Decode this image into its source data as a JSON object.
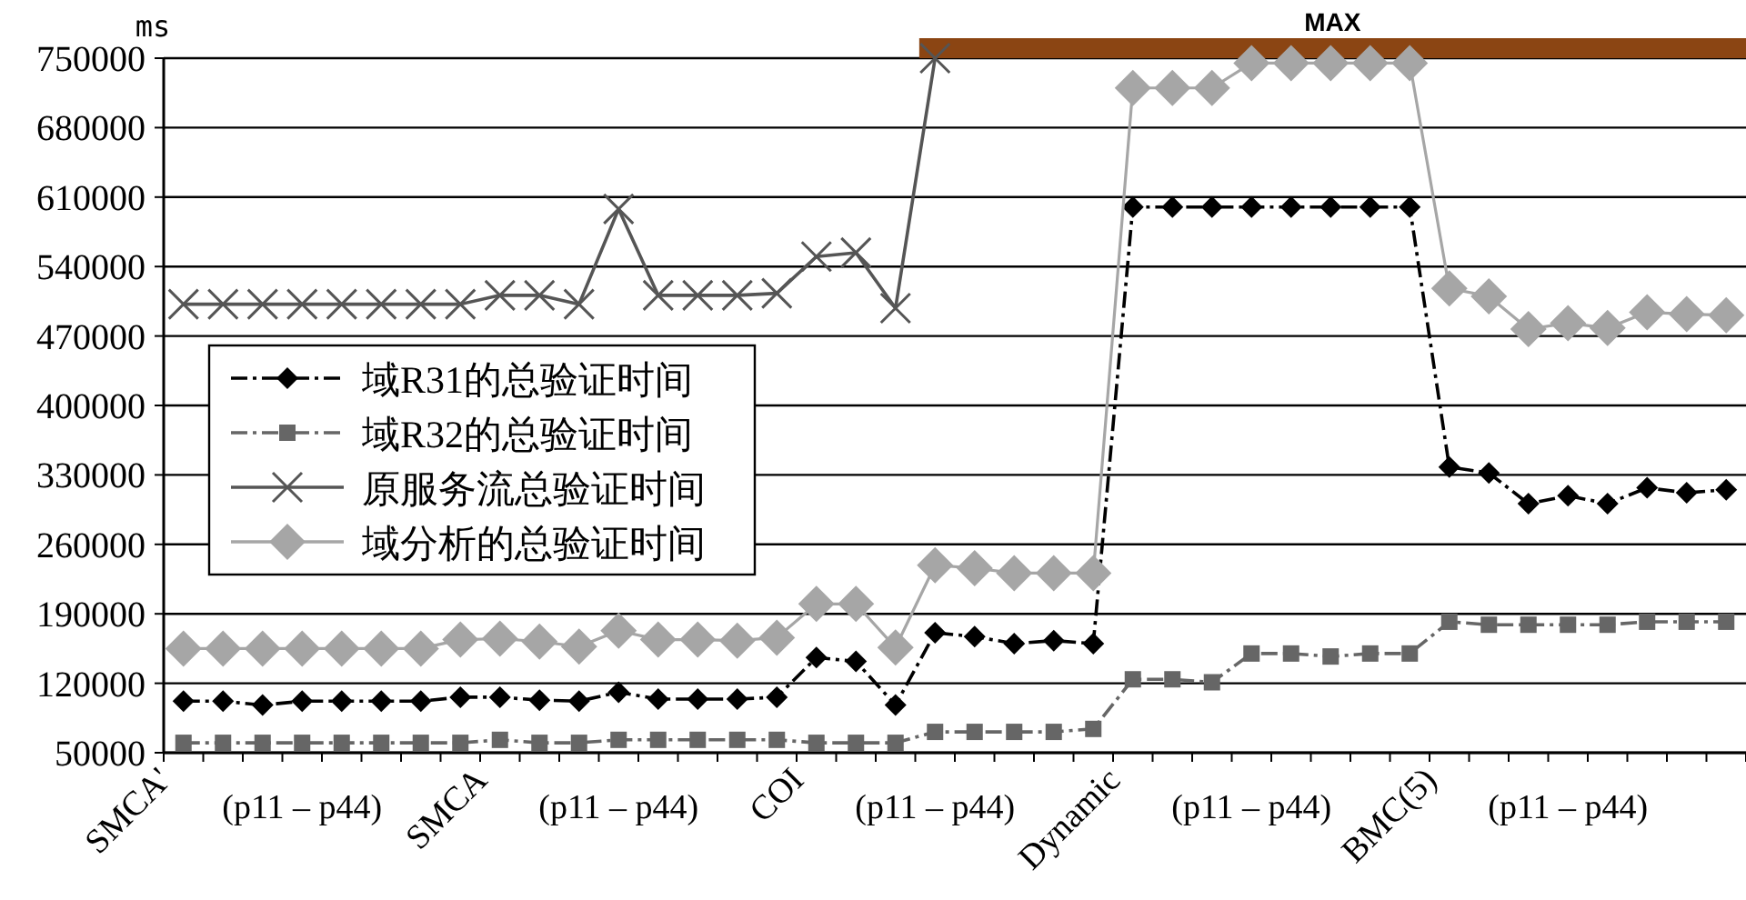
{
  "chart_data": {
    "type": "line",
    "ylabel": "ms",
    "categories": [
      "SMCA'",
      null,
      null,
      "(p11 – p44)",
      null,
      null,
      null,
      null,
      "SMCA",
      null,
      null,
      "(p11 – p44)",
      null,
      null,
      null,
      null,
      "COI",
      null,
      null,
      "(p11 – p44)",
      null,
      null,
      null,
      null,
      "Dynamic",
      null,
      null,
      "(p11 – p44)",
      null,
      null,
      null,
      null,
      "BMC(5)",
      null,
      null,
      "(p11 – p44)",
      null,
      null,
      null,
      null
    ],
    "series": [
      {
        "name": "域R31的总验证时间",
        "color": "#000000",
        "marker": "diamond",
        "line_style": "dashed",
        "values": [
          102000,
          102000,
          98000,
          102000,
          102000,
          102000,
          102000,
          106000,
          106000,
          103000,
          102000,
          111000,
          104000,
          104000,
          104000,
          106000,
          146000,
          142000,
          98000,
          171000,
          167000,
          160000,
          163000,
          160000,
          600000,
          600000,
          600000,
          600000,
          600000,
          600000,
          600000,
          600000,
          338000,
          332000,
          301000,
          309000,
          301000,
          317000,
          312000,
          315000
        ]
      },
      {
        "name": "域R32的总验证时间",
        "color": "#666666",
        "marker": "square",
        "line_style": "dashed",
        "values": [
          60000,
          60000,
          60000,
          60000,
          60000,
          60000,
          60000,
          60000,
          63000,
          60000,
          60000,
          63000,
          63000,
          63000,
          63000,
          63000,
          60000,
          60000,
          60000,
          71000,
          71000,
          71000,
          71000,
          74000,
          124000,
          124000,
          121000,
          150000,
          150000,
          147000,
          150000,
          150000,
          182000,
          179000,
          179000,
          179000,
          179000,
          182000,
          182000,
          182000
        ]
      },
      {
        "name": "原服务流总验证时间",
        "color": "#555555",
        "marker": "cross",
        "line_style": "solid",
        "values": [
          502000,
          502000,
          502000,
          502000,
          502000,
          502000,
          502000,
          502000,
          511000,
          511000,
          502000,
          598000,
          511000,
          511000,
          511000,
          513000,
          550000,
          554000,
          498000,
          750000,
          null,
          null,
          null,
          null,
          null,
          null,
          null,
          null,
          null,
          null,
          null,
          null,
          null,
          null,
          null,
          null,
          null,
          null,
          null,
          null
        ]
      },
      {
        "name": "域分析的总验证时间",
        "color": "#a6a6a6",
        "marker": "diamond",
        "line_style": "solid",
        "values": [
          155000,
          155000,
          155000,
          155000,
          155000,
          155000,
          155000,
          164000,
          165000,
          162000,
          157000,
          173000,
          164000,
          164000,
          163000,
          166000,
          200000,
          200000,
          156000,
          239000,
          236000,
          231000,
          231000,
          231000,
          720000,
          720000,
          720000,
          745000,
          745000,
          745000,
          745000,
          745000,
          518000,
          510000,
          477000,
          483000,
          478000,
          494000,
          492000,
          491000
        ]
      }
    ],
    "ylim": [
      50000,
      750000
    ],
    "yticks": [
      50000,
      120000,
      190000,
      260000,
      330000,
      400000,
      470000,
      540000,
      610000,
      680000,
      750000
    ],
    "grid": "y",
    "legend": "left",
    "annotations": [
      "MAX"
    ]
  }
}
